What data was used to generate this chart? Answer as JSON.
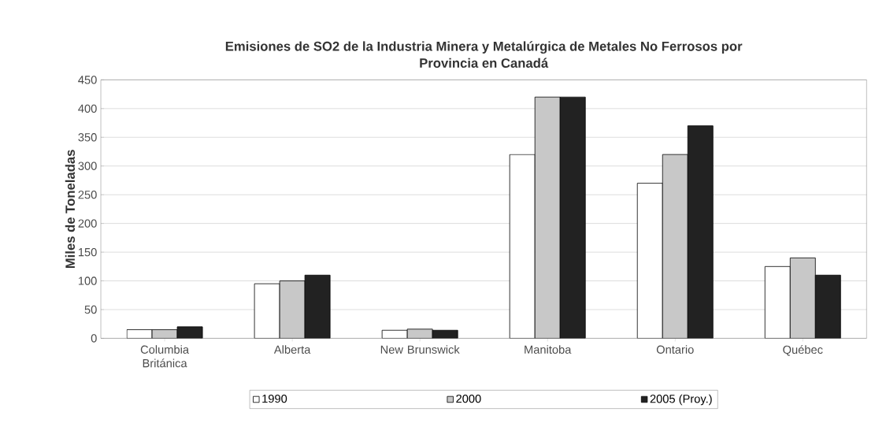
{
  "chart_data": {
    "type": "bar",
    "title": "Emisiones de SO2 de la Industria Minera y Metalúrgica de Metales No Ferrosos por Provincia en Canadá",
    "ylabel": "Miles de Toneladas",
    "categories": [
      "Columbia Británica",
      "Alberta",
      "New Brunswick",
      "Manitoba",
      "Ontario",
      "Québec"
    ],
    "series": [
      {
        "name": "1990",
        "color": "#ffffff",
        "values": [
          15,
          95,
          14,
          320,
          270,
          125
        ]
      },
      {
        "name": "2000",
        "color": "#c8c8c8",
        "values": [
          15,
          100,
          16,
          420,
          320,
          140
        ]
      },
      {
        "name": "2005 (Proy.)",
        "color": "#222222",
        "values": [
          20,
          110,
          14,
          420,
          370,
          110
        ]
      }
    ],
    "ylim": [
      0,
      450
    ],
    "yticks": [
      0,
      50,
      100,
      150,
      200,
      250,
      300,
      350,
      400,
      450
    ],
    "grid": "y",
    "legend": "bottom"
  }
}
